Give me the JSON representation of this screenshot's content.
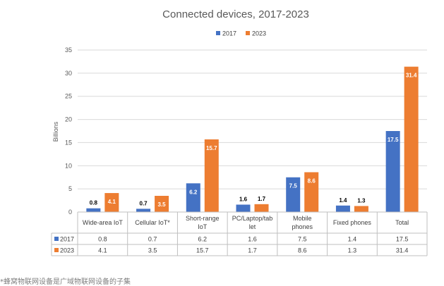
{
  "chart_data": {
    "type": "bar",
    "title": "Connected devices, 2017-2023",
    "ylabel": "Billions",
    "ylim": [
      0,
      35
    ],
    "yticks": [
      0,
      5,
      10,
      15,
      20,
      25,
      30,
      35
    ],
    "grid": true,
    "legend": "top-center",
    "categories": [
      [
        "Wide-area IoT"
      ],
      [
        "Cellular IoT*"
      ],
      [
        "Short-range",
        "IoT"
      ],
      [
        "PC/Laptop/tab",
        "let"
      ],
      [
        "Mobile",
        "phones"
      ],
      [
        "Fixed phones"
      ],
      [
        "Total"
      ]
    ],
    "series": [
      {
        "name": "2017",
        "color": "#4472c4",
        "values": [
          0.8,
          0.7,
          6.2,
          1.6,
          7.5,
          1.4,
          17.5
        ],
        "labels": [
          "0.8",
          "0.7",
          "6.2",
          "1.6",
          "7.5",
          "1.4",
          "17.5"
        ]
      },
      {
        "name": "2023",
        "color": "#ed7d31",
        "values": [
          4.1,
          3.5,
          15.7,
          1.7,
          8.6,
          1.3,
          31.4
        ],
        "labels": [
          "4.1",
          "3.5",
          "15.7",
          "1.7",
          "8.6",
          "1.3",
          "31.4"
        ]
      }
    ],
    "data_table": true
  },
  "footnote": "*蜂窝物联网设备是广域物联网设备的子集"
}
